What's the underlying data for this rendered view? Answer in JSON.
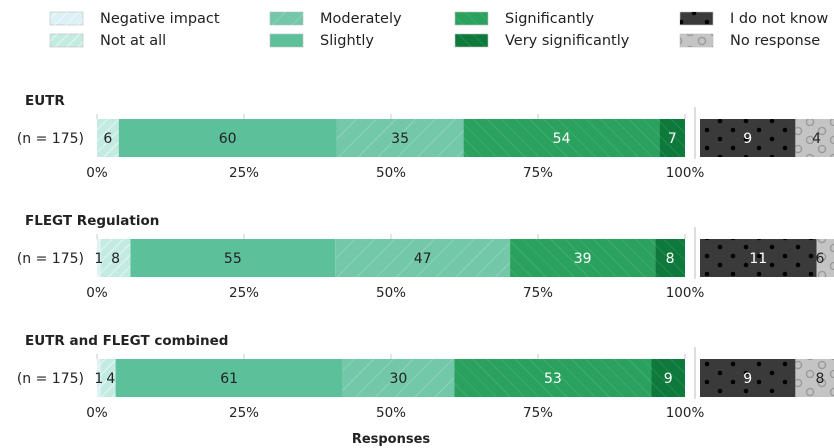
{
  "chart_data": {
    "type": "bar",
    "orientation": "horizontal-stacked",
    "xlabel": "Responses",
    "x_ticks": [
      "0%",
      "25%",
      "50%",
      "75%",
      "100%"
    ],
    "xlim": [
      0,
      100
    ],
    "legend_position": "top",
    "legend": [
      {
        "name": "Negative impact",
        "color": "#dcf1f5",
        "pattern": "light-hatch"
      },
      {
        "name": "Not at all",
        "color": "#c4ebe2",
        "pattern": "light-hatch"
      },
      {
        "name": "Moderately",
        "color": "#72c8a8",
        "pattern": "diagonal"
      },
      {
        "name": "Slightly",
        "color": "#5cc09a",
        "pattern": "none"
      },
      {
        "name": "Significantly",
        "color": "#2aa25e",
        "pattern": "back-diagonal"
      },
      {
        "name": "Very significantly",
        "color": "#0d7a3b",
        "pattern": "back-diagonal"
      },
      {
        "name": "I do not know",
        "color": "#3a3a3a",
        "pattern": "dots"
      },
      {
        "name": "No response",
        "color": "#c4c4c4",
        "pattern": "circles"
      }
    ],
    "groups": [
      {
        "title": "EUTR",
        "n_label": "(n = 175)",
        "segments": [
          {
            "cat": "Negative impact",
            "value": 0,
            "label": ""
          },
          {
            "cat": "Not at all",
            "value": 6,
            "label": "6"
          },
          {
            "cat": "Slightly",
            "value": 60,
            "label": "60"
          },
          {
            "cat": "Moderately",
            "value": 35,
            "label": "35"
          },
          {
            "cat": "Significantly",
            "value": 54,
            "label": "54"
          },
          {
            "cat": "Very significantly",
            "value": 7,
            "label": "7"
          }
        ],
        "extra": [
          {
            "cat": "I do not know",
            "value": 9,
            "label": "9"
          },
          {
            "cat": "No response",
            "value": 4,
            "label": "4"
          }
        ]
      },
      {
        "title": "FLEGT Regulation",
        "n_label": "(n = 175)",
        "segments": [
          {
            "cat": "Negative impact",
            "value": 1,
            "label": "1"
          },
          {
            "cat": "Not at all",
            "value": 8,
            "label": "8"
          },
          {
            "cat": "Slightly",
            "value": 55,
            "label": "55"
          },
          {
            "cat": "Moderately",
            "value": 47,
            "label": "47"
          },
          {
            "cat": "Significantly",
            "value": 39,
            "label": "39"
          },
          {
            "cat": "Very significantly",
            "value": 8,
            "label": "8"
          }
        ],
        "extra": [
          {
            "cat": "I do not know",
            "value": 11,
            "label": "11"
          },
          {
            "cat": "No response",
            "value": 6,
            "label": "6"
          }
        ]
      },
      {
        "title": "EUTR and FLEGT combined",
        "n_label": "(n = 175)",
        "segments": [
          {
            "cat": "Negative impact",
            "value": 1,
            "label": "1"
          },
          {
            "cat": "Not at all",
            "value": 4,
            "label": "4"
          },
          {
            "cat": "Slightly",
            "value": 61,
            "label": "61"
          },
          {
            "cat": "Moderately",
            "value": 30,
            "label": "30"
          },
          {
            "cat": "Significantly",
            "value": 53,
            "label": "53"
          },
          {
            "cat": "Very significantly",
            "value": 9,
            "label": "9"
          }
        ],
        "extra": [
          {
            "cat": "I do not know",
            "value": 9,
            "label": "9"
          },
          {
            "cat": "No response",
            "value": 8,
            "label": "8"
          }
        ]
      }
    ]
  }
}
